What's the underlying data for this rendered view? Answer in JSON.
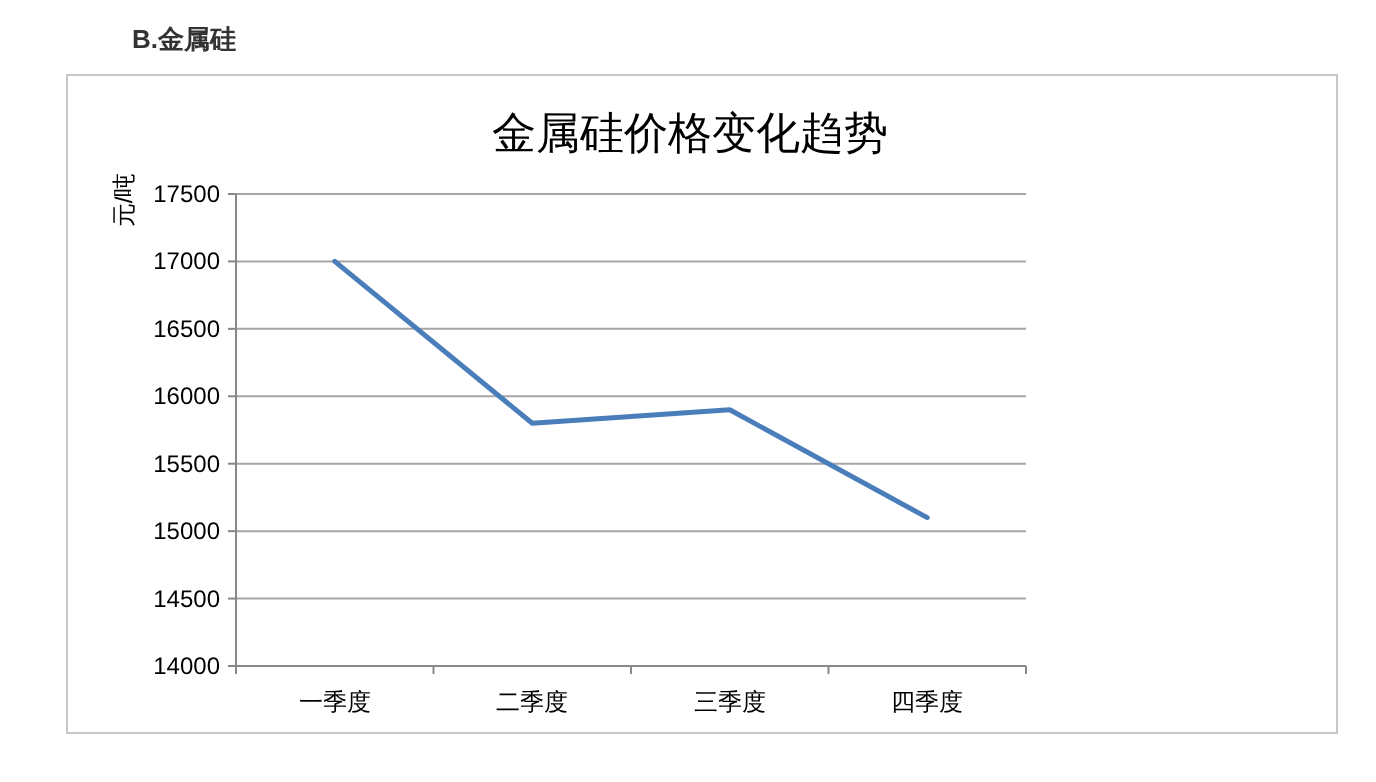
{
  "chart_data": {
    "type": "line",
    "subtitle": "B.金属硅",
    "title": "金属硅价格变化趋势",
    "ylabel": "元/吨",
    "categories": [
      "一季度",
      "二季度",
      "三季度",
      "四季度"
    ],
    "series": [
      {
        "color": "#4a7ebb",
        "values": [
          17000,
          15800,
          15900,
          15100
        ]
      }
    ],
    "ylim": [
      14000,
      17500
    ],
    "yticks": [
      14000,
      14500,
      15000,
      15500,
      16000,
      16500,
      17000,
      17500
    ],
    "grid": "y",
    "marker": "none",
    "line_style": "solid"
  }
}
